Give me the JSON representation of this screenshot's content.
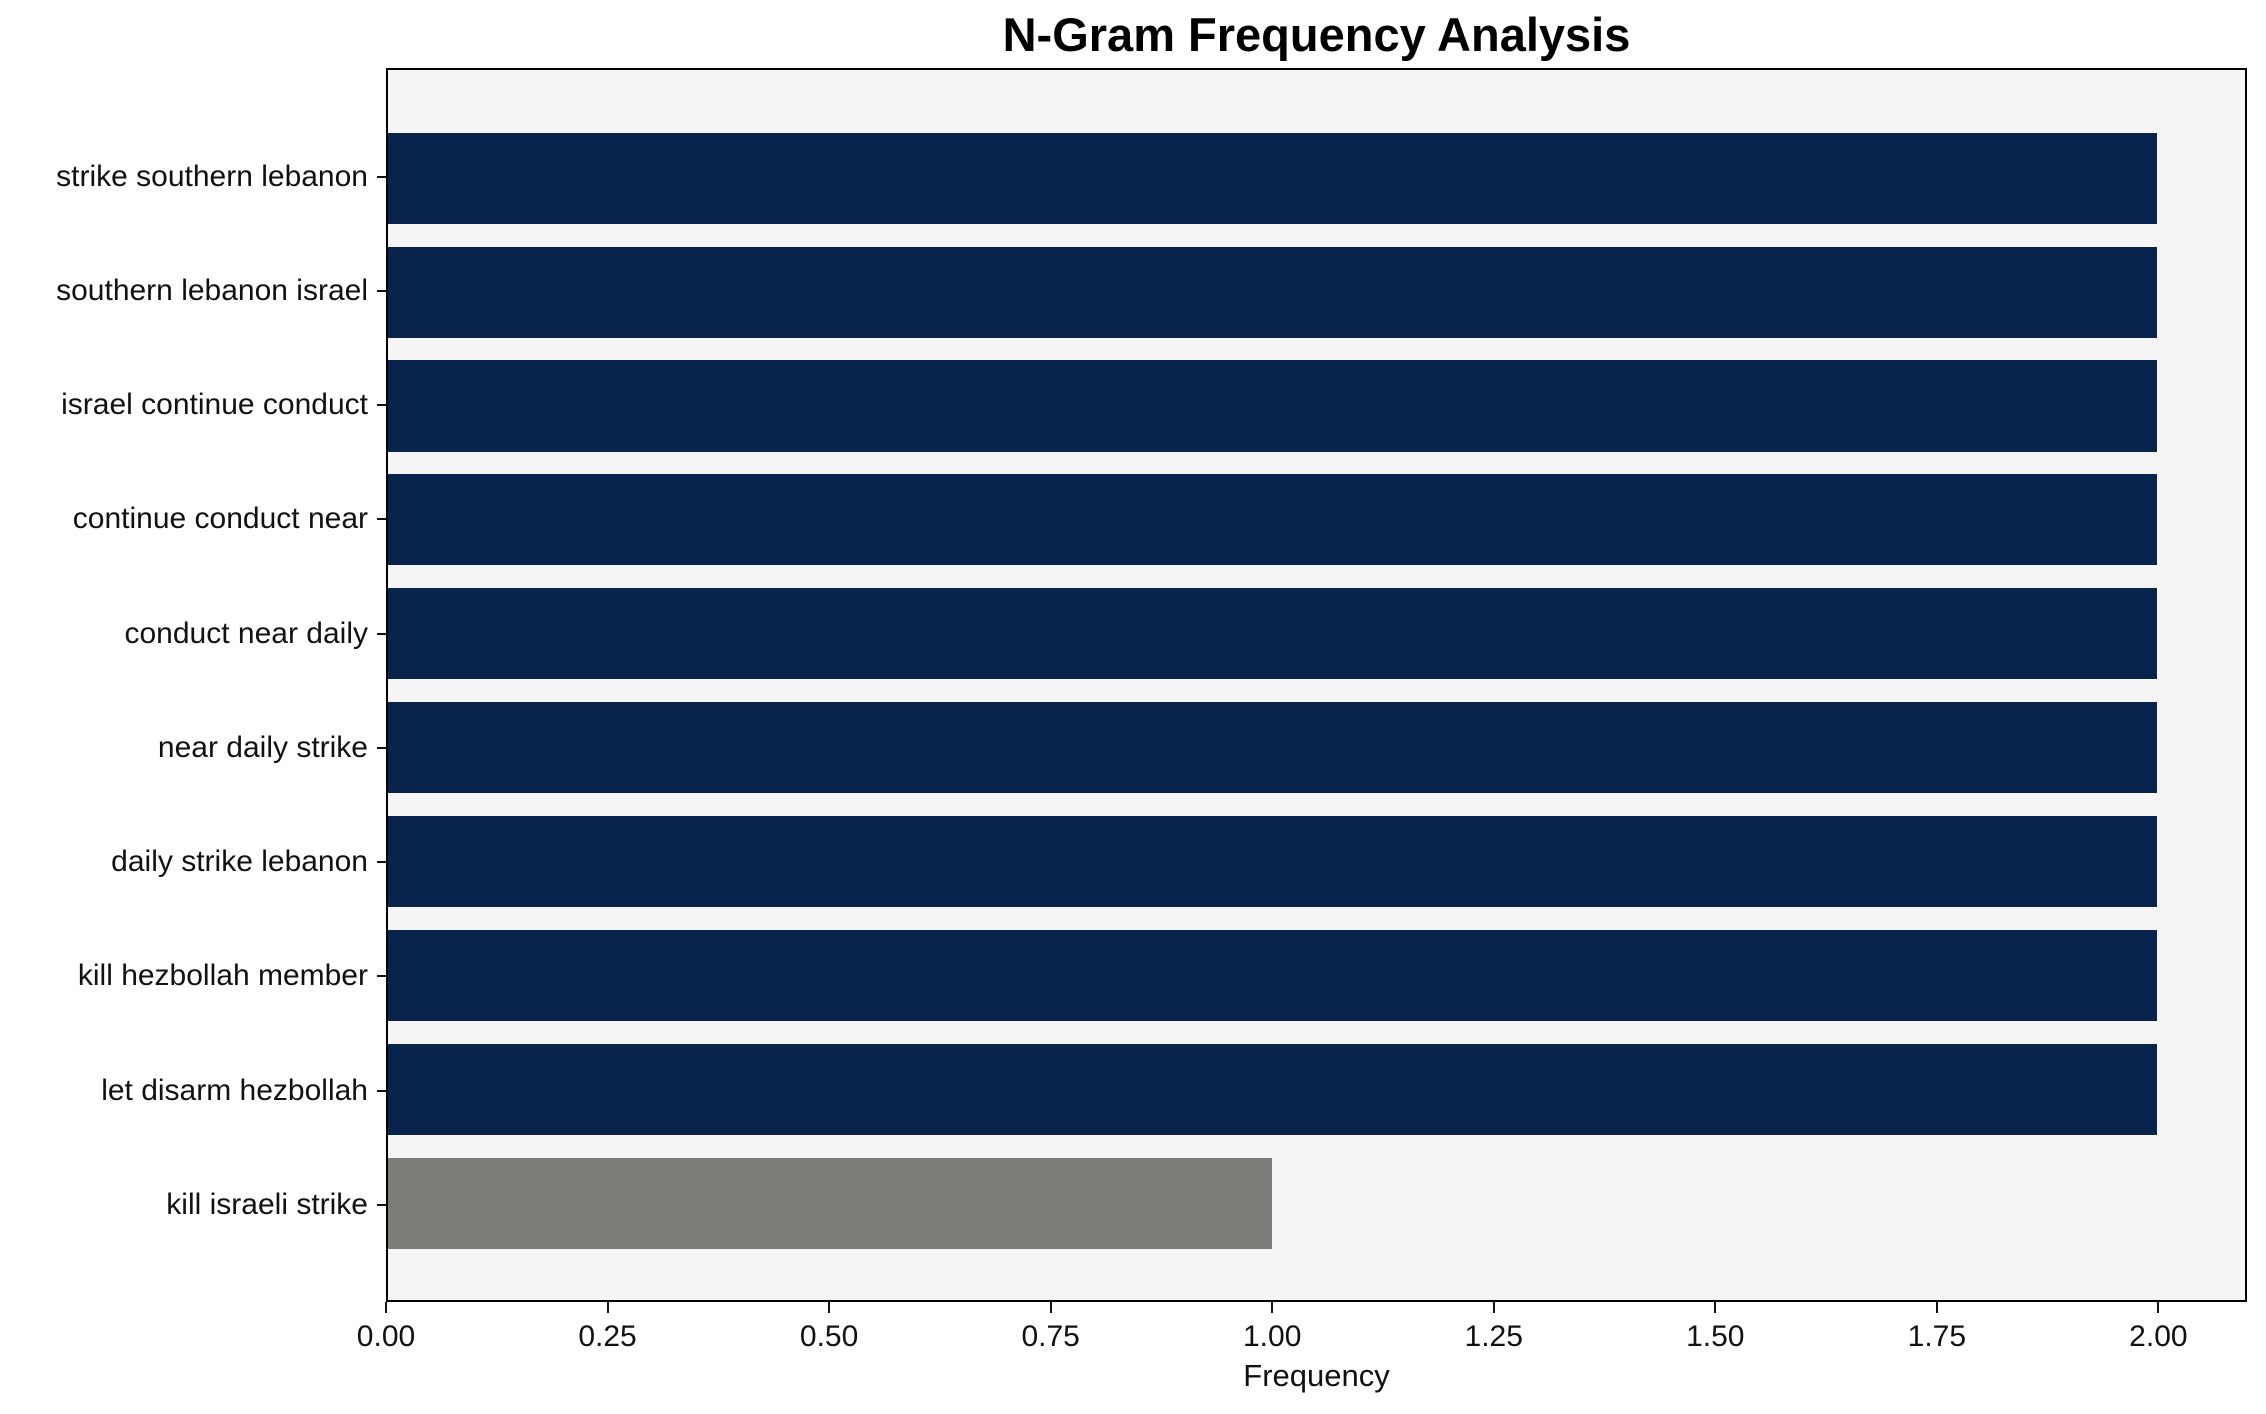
{
  "chart_data": {
    "type": "bar",
    "orientation": "horizontal",
    "title": "N-Gram Frequency Analysis",
    "xlabel": "Frequency",
    "ylabel": "",
    "categories": [
      "strike southern lebanon",
      "southern lebanon israel",
      "israel continue conduct",
      "continue conduct near",
      "conduct near daily",
      "near daily strike",
      "daily strike lebanon",
      "kill hezbollah member",
      "let disarm hezbollah",
      "kill israeli strike"
    ],
    "values": [
      2,
      2,
      2,
      2,
      2,
      2,
      2,
      2,
      2,
      1
    ],
    "bar_colors": [
      "#08234c",
      "#08234c",
      "#08234c",
      "#08234c",
      "#08234c",
      "#08234c",
      "#08234c",
      "#08234c",
      "#08234c",
      "#7c7b78"
    ],
    "xlim": [
      0,
      2.1
    ],
    "xticks": [
      0,
      0.25,
      0.5,
      0.75,
      1.0,
      1.25,
      1.5,
      1.75,
      2.0
    ],
    "xtick_labels": [
      "0.00",
      "0.25",
      "0.50",
      "0.75",
      "1.00",
      "1.25",
      "1.50",
      "1.75",
      "2.00"
    ],
    "grid": false,
    "legend": null,
    "plot_background": "#f5f5f5",
    "figure_background": "#ffffff",
    "spine_color": "#000000"
  }
}
